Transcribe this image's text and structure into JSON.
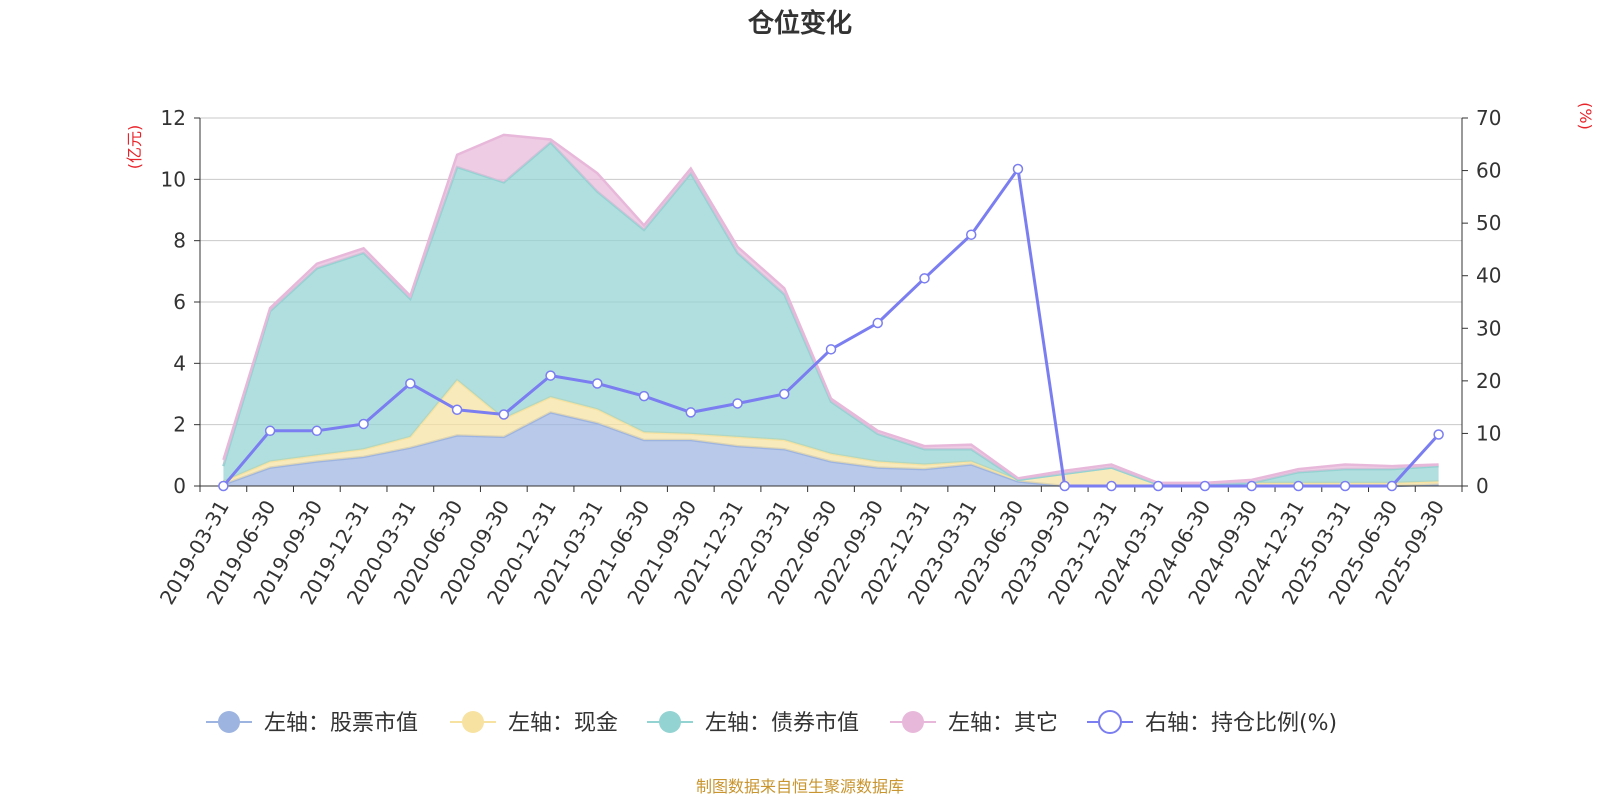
{
  "chart_data": {
    "type": "area",
    "title": "仓位变化",
    "left_axis_unit": "(亿元)",
    "right_axis_unit": "(%)",
    "left_ylim": [
      0,
      12
    ],
    "left_ticks": [
      0,
      2,
      4,
      6,
      8,
      10,
      12
    ],
    "right_ylim": [
      0,
      70
    ],
    "right_ticks": [
      0,
      10,
      20,
      30,
      40,
      50,
      60,
      70
    ],
    "categories": [
      "2019-03-31",
      "2019-06-30",
      "2019-09-30",
      "2019-12-31",
      "2020-03-31",
      "2020-06-30",
      "2020-09-30",
      "2020-12-31",
      "2021-03-31",
      "2021-06-30",
      "2021-09-30",
      "2021-12-31",
      "2022-03-31",
      "2022-06-30",
      "2022-09-30",
      "2022-12-31",
      "2023-03-31",
      "2023-06-30",
      "2023-09-30",
      "2023-12-31",
      "2024-03-31",
      "2024-06-30",
      "2024-09-30",
      "2024-12-31",
      "2025-03-31",
      "2025-06-30",
      "2025-09-30"
    ],
    "stacked_series": [
      {
        "name": "左轴：股票市值",
        "axis": "left",
        "color": "#9db4e0",
        "values": [
          0.05,
          0.6,
          0.8,
          0.95,
          1.25,
          1.65,
          1.6,
          2.4,
          2.05,
          1.5,
          1.5,
          1.3,
          1.2,
          0.8,
          0.6,
          0.55,
          0.7,
          0.15,
          0.0,
          0.0,
          0.0,
          0.0,
          0.0,
          0.0,
          0.0,
          0.0,
          0.05
        ]
      },
      {
        "name": "左轴：现金",
        "axis": "left",
        "color": "#f7e2a1",
        "values": [
          0.1,
          0.2,
          0.2,
          0.25,
          0.35,
          1.8,
          0.6,
          0.5,
          0.45,
          0.25,
          0.2,
          0.3,
          0.3,
          0.25,
          0.2,
          0.15,
          0.1,
          0.05,
          0.4,
          0.6,
          0.05,
          0.05,
          0.1,
          0.1,
          0.1,
          0.1,
          0.1
        ]
      },
      {
        "name": "左轴：债券市值",
        "axis": "left",
        "color": "#93d3d2",
        "values": [
          0.5,
          4.9,
          6.1,
          6.4,
          4.5,
          6.95,
          7.7,
          8.3,
          7.1,
          6.6,
          8.5,
          6.0,
          4.75,
          1.7,
          0.9,
          0.5,
          0.4,
          0.0,
          0.0,
          0.0,
          0.0,
          0.0,
          0.0,
          0.35,
          0.45,
          0.45,
          0.5
        ]
      },
      {
        "name": "左轴：其它",
        "axis": "left",
        "color": "#e8b8da",
        "values": [
          0.2,
          0.1,
          0.15,
          0.15,
          0.1,
          0.4,
          1.55,
          0.1,
          0.6,
          0.15,
          0.15,
          0.2,
          0.2,
          0.1,
          0.1,
          0.1,
          0.15,
          0.05,
          0.1,
          0.1,
          0.05,
          0.05,
          0.1,
          0.1,
          0.15,
          0.1,
          0.05
        ]
      }
    ],
    "line_series": {
      "name": "右轴：持仓比例(%)",
      "axis": "right",
      "color": "#7b7ef0",
      "values": [
        0,
        10.5,
        10.5,
        11.8,
        19.5,
        14.5,
        13.6,
        21,
        19.5,
        17.1,
        14,
        15.7,
        17.5,
        26,
        31,
        39.5,
        47.8,
        60.3,
        0,
        0,
        0,
        0,
        0,
        0,
        0,
        0,
        9.8
      ]
    },
    "legend_position": "bottom",
    "grid": true
  },
  "footer": {
    "source": "制图数据来自恒生聚源数据库",
    "source_color": "#c8952e"
  },
  "colors": {
    "axis_unit": "#e8232a",
    "grid": "#c9c9c9",
    "axis_line": "#333333"
  }
}
